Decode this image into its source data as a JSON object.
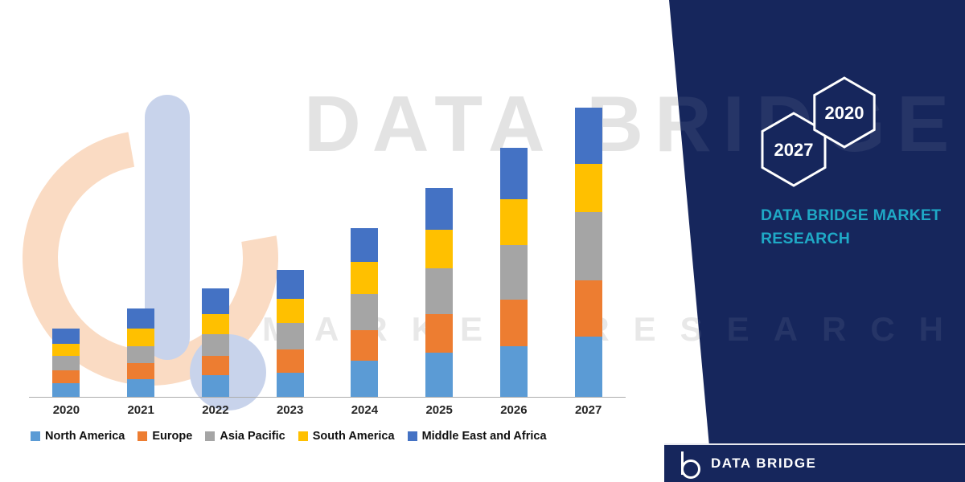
{
  "colors": {
    "navy": "#16265C",
    "teal": "#1FA9C6",
    "watermark_gray": "#E3E3E3"
  },
  "watermark": {
    "line1": "DATA BRIDGE",
    "line2": "MARKET RESEARCH",
    "logo_icon": "data-bridge-logo-watermark"
  },
  "panel": {
    "hexagons": [
      {
        "label": "2027"
      },
      {
        "label": "2020"
      }
    ],
    "heading": "DATA BRIDGE MARKET RESEARCH"
  },
  "footer": {
    "brand": "DATA BRIDGE",
    "logo_icon": "data-bridge-logo-icon"
  },
  "chart_data": {
    "type": "bar",
    "stacked": true,
    "title": "",
    "xlabel": "",
    "ylabel": "",
    "y_axis_shown": false,
    "units": "relative stacked segment heights (no y-axis labels shown in image)",
    "legend_position": "bottom",
    "grid": false,
    "categories": [
      "2020",
      "2021",
      "2022",
      "2023",
      "2024",
      "2025",
      "2026",
      "2027"
    ],
    "series": [
      {
        "name": "North America",
        "color": "#5B9BD5",
        "values": [
          17,
          22,
          27,
          30,
          45,
          55,
          63,
          75
        ]
      },
      {
        "name": "Europe",
        "color": "#ED7D31",
        "values": [
          16,
          20,
          24,
          29,
          38,
          48,
          58,
          70
        ]
      },
      {
        "name": "Asia Pacific",
        "color": "#A5A5A5",
        "values": [
          18,
          21,
          27,
          33,
          45,
          57,
          68,
          85
        ]
      },
      {
        "name": "South America",
        "color": "#FFC000",
        "values": [
          15,
          22,
          25,
          30,
          40,
          48,
          57,
          60
        ]
      },
      {
        "name": "Middle East and Africa",
        "color": "#4472C4",
        "values": [
          19,
          25,
          32,
          36,
          42,
          52,
          64,
          70
        ]
      }
    ],
    "totals": [
      85,
      110,
      135,
      158,
      210,
      260,
      310,
      360
    ]
  }
}
